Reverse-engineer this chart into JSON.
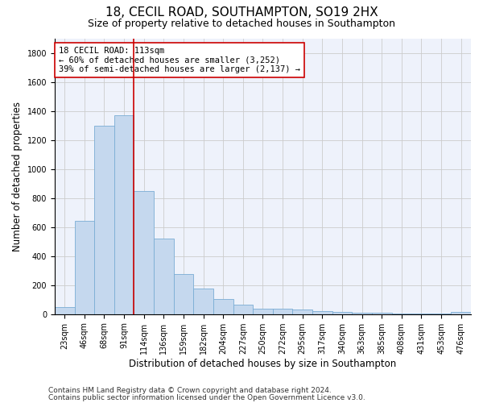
{
  "title1": "18, CECIL ROAD, SOUTHAMPTON, SO19 2HX",
  "title2": "Size of property relative to detached houses in Southampton",
  "xlabel": "Distribution of detached houses by size in Southampton",
  "ylabel": "Number of detached properties",
  "categories": [
    "23sqm",
    "46sqm",
    "68sqm",
    "91sqm",
    "114sqm",
    "136sqm",
    "159sqm",
    "182sqm",
    "204sqm",
    "227sqm",
    "250sqm",
    "272sqm",
    "295sqm",
    "317sqm",
    "340sqm",
    "363sqm",
    "385sqm",
    "408sqm",
    "431sqm",
    "453sqm",
    "476sqm"
  ],
  "values": [
    50,
    640,
    1300,
    1370,
    850,
    520,
    275,
    175,
    105,
    65,
    40,
    35,
    30,
    20,
    15,
    10,
    8,
    5,
    5,
    5,
    15
  ],
  "bar_color": "#c5d8ee",
  "bar_edge_color": "#7aadd4",
  "property_line_color": "#cc0000",
  "annotation_text": "18 CECIL ROAD: 113sqm\n← 60% of detached houses are smaller (3,252)\n39% of semi-detached houses are larger (2,137) →",
  "annotation_box_color": "#ffffff",
  "annotation_box_edge": "#cc0000",
  "footnote1": "Contains HM Land Registry data © Crown copyright and database right 2024.",
  "footnote2": "Contains public sector information licensed under the Open Government Licence v3.0.",
  "ylim": [
    0,
    1900
  ],
  "yticks": [
    0,
    200,
    400,
    600,
    800,
    1000,
    1200,
    1400,
    1600,
    1800
  ],
  "grid_color": "#cccccc",
  "background_color": "#eef2fb",
  "fig_background": "#ffffff",
  "title1_fontsize": 11,
  "title2_fontsize": 9,
  "xlabel_fontsize": 8.5,
  "ylabel_fontsize": 8.5,
  "tick_fontsize": 7,
  "annotation_fontsize": 7.5,
  "footnote_fontsize": 6.5
}
